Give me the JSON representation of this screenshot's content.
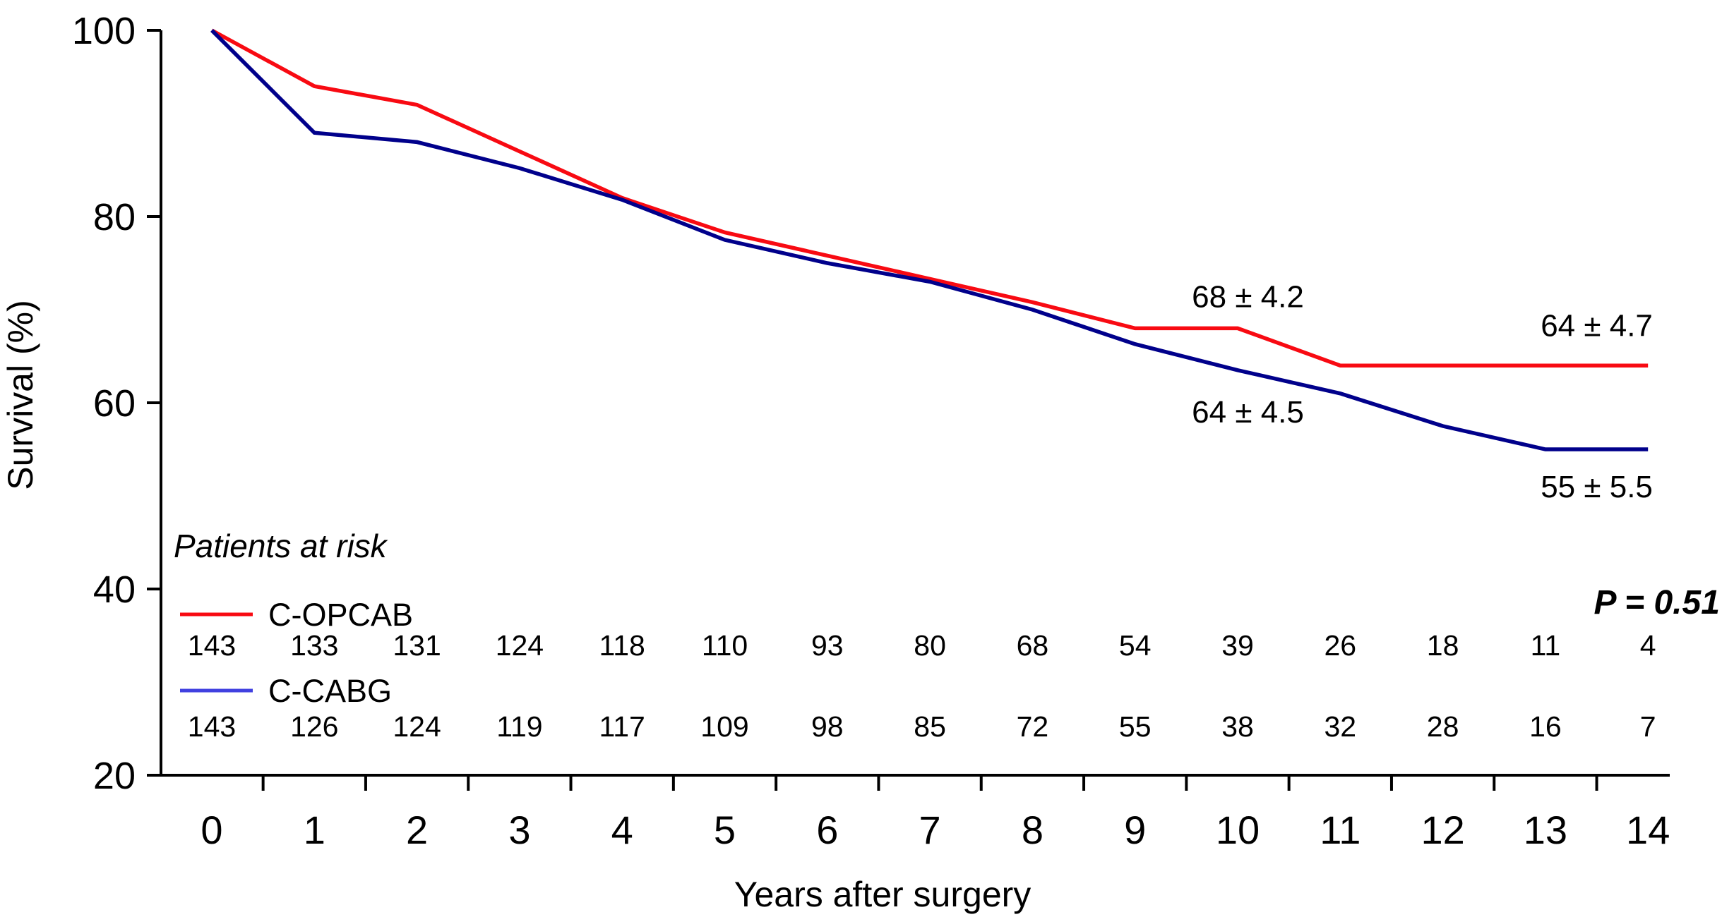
{
  "chart_data": {
    "type": "line",
    "title": "",
    "xlabel": "Years after surgery",
    "ylabel": "Survival (%)",
    "xlim": [
      0,
      14
    ],
    "ylim": [
      20,
      100
    ],
    "x_tick_labels": [
      "0",
      "1",
      "2",
      "3",
      "4",
      "5",
      "6",
      "7",
      "8",
      "9",
      "10",
      "11",
      "12",
      "13",
      "14"
    ],
    "y_tick_labels": [
      "20",
      "40",
      "60",
      "80",
      "100"
    ],
    "y_ticks": [
      20,
      40,
      60,
      80,
      100
    ],
    "grid": false,
    "legend_position": "inside-lower-left",
    "series": [
      {
        "name": "C-OPCAB",
        "color": "#F80A12",
        "legend_color": "#F80A12",
        "x": [
          0,
          1,
          2,
          3,
          4,
          5,
          6,
          7,
          8,
          9,
          10,
          11,
          12,
          13,
          14
        ],
        "values": [
          100,
          94,
          92,
          87,
          82,
          78.3,
          75.8,
          73.3,
          70.8,
          68,
          68,
          64,
          64,
          64,
          64
        ]
      },
      {
        "name": "C-CABG",
        "color": "#00008B",
        "legend_color": "#4040E0",
        "x": [
          0,
          1,
          2,
          3,
          4,
          5,
          6,
          7,
          8,
          9,
          10,
          11,
          12,
          13,
          14
        ],
        "values": [
          100,
          89,
          88,
          85.2,
          81.8,
          77.5,
          75,
          73,
          70,
          66.3,
          63.5,
          61,
          57.5,
          55,
          55
        ]
      }
    ],
    "annotations": [
      {
        "name": "annotation-opcab-10yr",
        "text": "68 ± 4.2",
        "x": 10.1,
        "y": 71.4,
        "anchor": "middle",
        "italic": false,
        "bold": false
      },
      {
        "name": "annotation-cabg-10yr",
        "text": "64 ± 4.5",
        "x": 10.1,
        "y": 59.0,
        "anchor": "middle",
        "italic": false,
        "bold": false
      },
      {
        "name": "annotation-opcab-14yr",
        "text": "64 ± 4.7",
        "x": 13.5,
        "y": 68.3,
        "anchor": "middle",
        "italic": false,
        "bold": false
      },
      {
        "name": "annotation-cabg-14yr",
        "text": "55 ± 5.5",
        "x": 13.5,
        "y": 51.0,
        "anchor": "middle",
        "italic": false,
        "bold": false
      },
      {
        "name": "p-value-label",
        "text": "P = 0.51",
        "x": 14.7,
        "y": 38.5,
        "anchor": "end",
        "italic": true,
        "bold": true
      }
    ]
  },
  "patients_at_risk": {
    "title": "Patients at risk",
    "rows": [
      {
        "label": "C-OPCAB",
        "counts": [
          143,
          133,
          131,
          124,
          118,
          110,
          93,
          80,
          68,
          54,
          39,
          26,
          18,
          11,
          4
        ]
      },
      {
        "label": "C-CABG",
        "counts": [
          143,
          126,
          124,
          119,
          117,
          109,
          98,
          85,
          72,
          55,
          38,
          32,
          28,
          16,
          7
        ]
      }
    ]
  },
  "colors": {
    "background": "#FFFFFF",
    "axis": "#000000",
    "text": "#000000"
  }
}
